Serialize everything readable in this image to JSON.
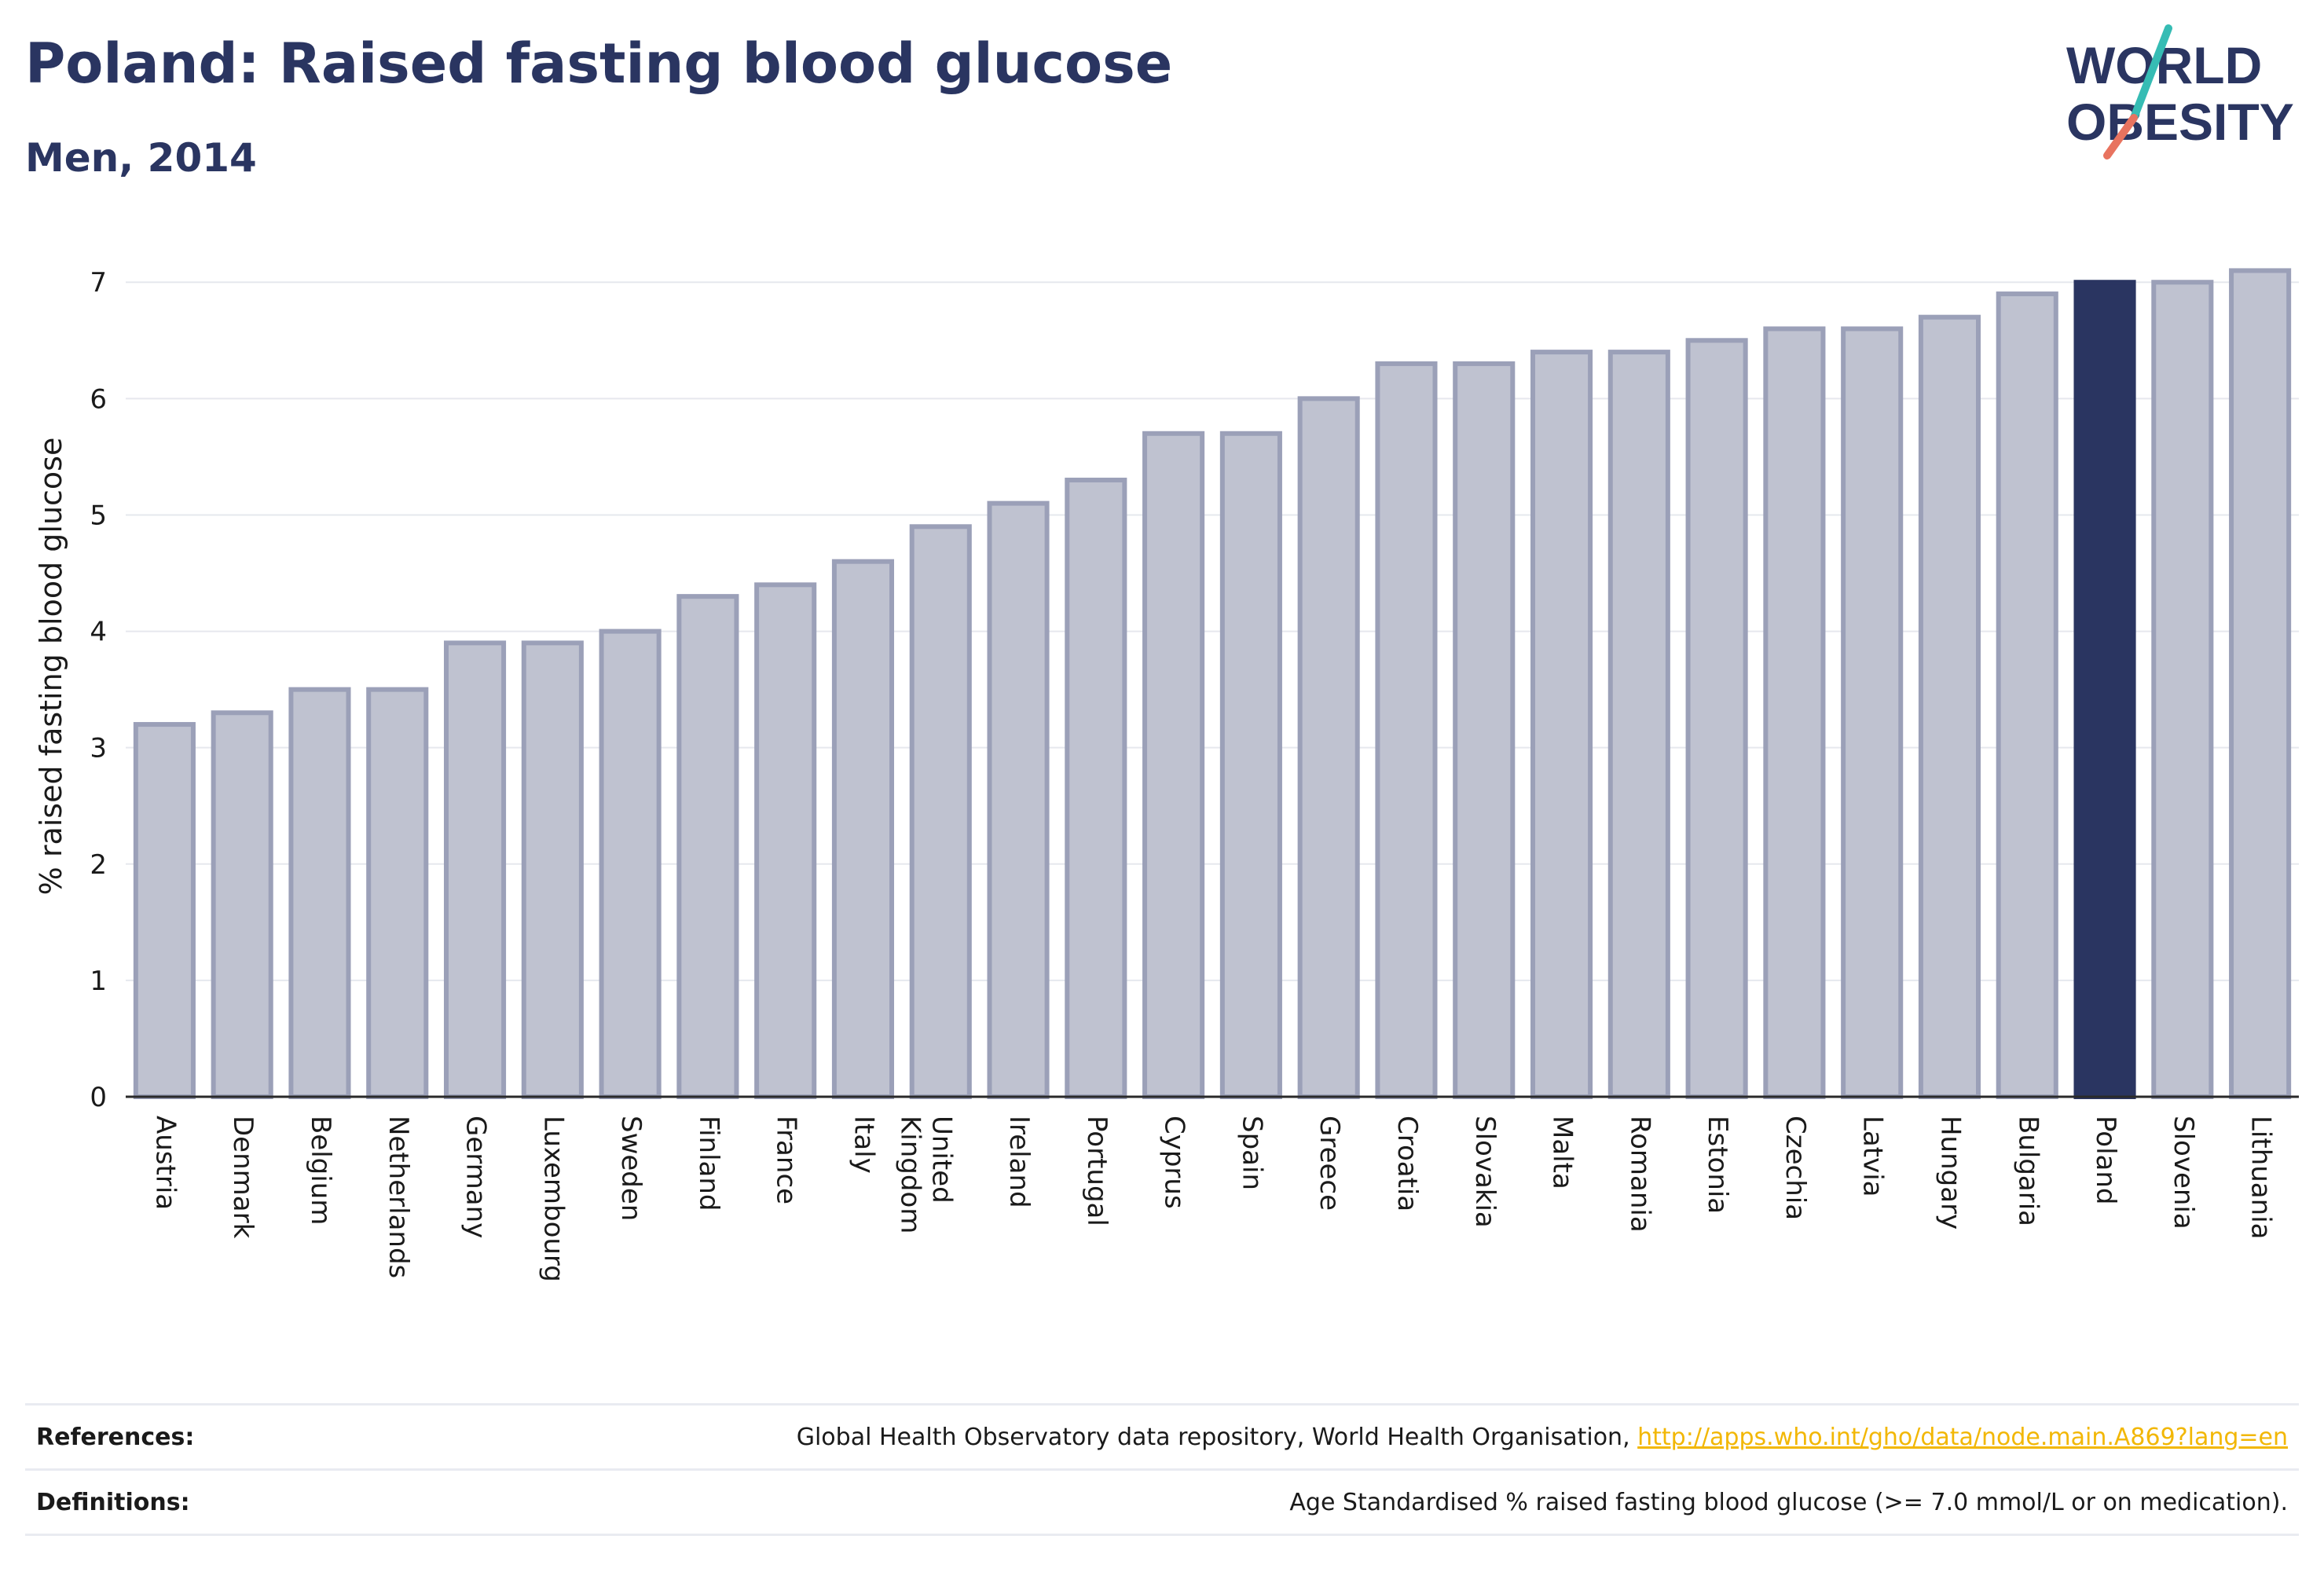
{
  "header": {
    "title": "Poland: Raised fasting blood glucose",
    "subtitle": "Men, 2014"
  },
  "logo": {
    "line1": "WORLD",
    "line2": "OBESITY"
  },
  "colors": {
    "highlight": "#2a3561",
    "bar_fill": "#bfc2d0",
    "bar_stroke": "#9ba0b8",
    "logo_teal": "#36bcb4",
    "logo_coral": "#e8735f",
    "link": "#f2b705"
  },
  "chart_data": {
    "type": "bar",
    "title": "Poland: Raised fasting blood glucose",
    "subtitle": "Men, 2014",
    "xlabel": "",
    "ylabel": "% raised fasting blood glucose",
    "ylim": [
      0,
      7.4
    ],
    "yticks": [
      0,
      1,
      2,
      3,
      4,
      5,
      6,
      7
    ],
    "grid": true,
    "highlight": "Poland",
    "categories": [
      "Austria",
      "Denmark",
      "Belgium",
      "Netherlands",
      "Germany",
      "Luxembourg",
      "Sweden",
      "Finland",
      "France",
      "Italy",
      "United Kingdom",
      "Ireland",
      "Portugal",
      "Cyprus",
      "Spain",
      "Greece",
      "Croatia",
      "Slovakia",
      "Malta",
      "Romania",
      "Estonia",
      "Czechia",
      "Latvia",
      "Hungary",
      "Bulgaria",
      "Poland",
      "Slovenia",
      "Lithuania"
    ],
    "values": [
      3.2,
      3.3,
      3.5,
      3.5,
      3.9,
      3.9,
      4.0,
      4.3,
      4.4,
      4.6,
      4.9,
      5.1,
      5.3,
      5.7,
      5.7,
      6.0,
      6.3,
      6.3,
      6.4,
      6.4,
      6.5,
      6.6,
      6.6,
      6.7,
      6.9,
      7.0,
      7.0,
      7.1
    ]
  },
  "footer": {
    "references_label": "References:",
    "references_text": "Global Health Observatory data repository, World Health Organisation, ",
    "references_link": "http://apps.who.int/gho/data/node.main.A869?lang=en",
    "definitions_label": "Definitions:",
    "definitions_text": "Age Standardised % raised fasting blood glucose (>= 7.0 mmol/L or on medication)."
  }
}
